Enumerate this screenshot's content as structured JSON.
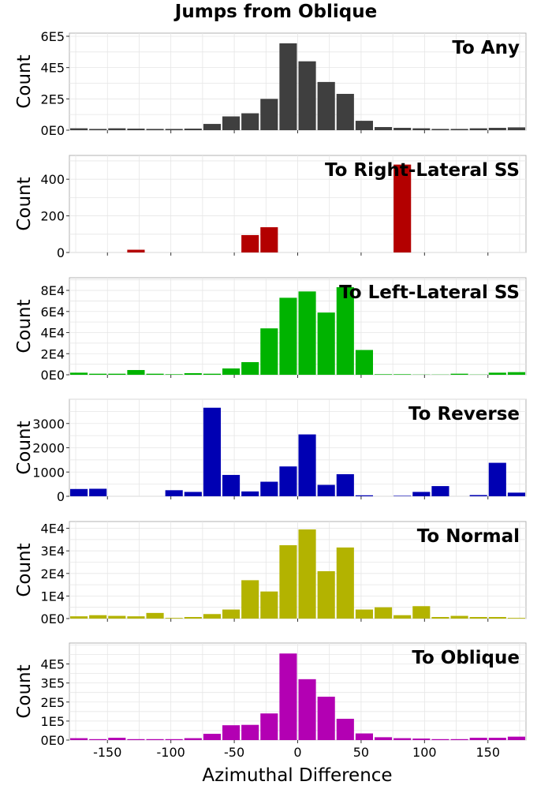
{
  "chart_data": {
    "type": "bar",
    "title": "Jumps from Oblique",
    "xlabel": "Azimuthal Difference",
    "xlim": [
      -180,
      180
    ],
    "bin_width": 15,
    "x": [
      -172.5,
      -157.5,
      -142.5,
      -127.5,
      -112.5,
      -97.5,
      -82.5,
      -67.5,
      -52.5,
      -37.5,
      -22.5,
      -7.5,
      7.5,
      22.5,
      37.5,
      52.5,
      67.5,
      82.5,
      97.5,
      112.5,
      127.5,
      142.5,
      157.5,
      172.5
    ],
    "xticks": [
      -150,
      -100,
      -50,
      0,
      50,
      100,
      150
    ],
    "xtick_labels": [
      "-150",
      "-100",
      "-50",
      "0",
      "50",
      "100",
      "150"
    ],
    "grid": true,
    "panels": [
      {
        "name": "To Any",
        "color": "#3f3f3f",
        "ylabel": "Count",
        "ylim": [
          0,
          620000
        ],
        "yticks": [
          0,
          200000,
          400000,
          600000
        ],
        "ytick_labels": [
          "0E0",
          "2E5",
          "4E5",
          "6E5"
        ],
        "values": [
          12000,
          8000,
          12000,
          10000,
          8000,
          8000,
          10000,
          40000,
          88000,
          108000,
          200000,
          555000,
          440000,
          308000,
          232000,
          60000,
          20000,
          15000,
          12000,
          8000,
          8000,
          12000,
          15000,
          18000
        ]
      },
      {
        "name": "To Right-Lateral SS",
        "color": "#b30000",
        "ylabel": "Count",
        "ylim": [
          0,
          530
        ],
        "yticks": [
          0,
          200,
          400
        ],
        "ytick_labels": [
          "0",
          "200",
          "400"
        ],
        "values": [
          0,
          0,
          0,
          15,
          0,
          0,
          0,
          0,
          0,
          95,
          138,
          0,
          0,
          0,
          0,
          0,
          0,
          480,
          0,
          0,
          0,
          0,
          0,
          0
        ]
      },
      {
        "name": "To Left-Lateral SS",
        "color": "#00b300",
        "ylabel": "Count",
        "ylim": [
          0,
          92000
        ],
        "yticks": [
          0,
          20000,
          40000,
          60000,
          80000
        ],
        "ytick_labels": [
          "0E0",
          "2E4",
          "4E4",
          "6E4",
          "8E4"
        ],
        "values": [
          2000,
          1000,
          1000,
          4500,
          1000,
          500,
          1500,
          1000,
          6000,
          12000,
          44000,
          73000,
          79000,
          59000,
          83000,
          23500,
          500,
          500,
          200,
          200,
          1000,
          200,
          2000,
          2500
        ]
      },
      {
        "name": "To Reverse",
        "color": "#0000b3",
        "ylabel": "Count",
        "ylim": [
          0,
          4000
        ],
        "yticks": [
          0,
          1000,
          2000,
          3000
        ],
        "ytick_labels": [
          "0",
          "1000",
          "2000",
          "3000"
        ],
        "values": [
          300,
          310,
          0,
          0,
          0,
          250,
          180,
          3650,
          880,
          200,
          600,
          1230,
          2550,
          470,
          910,
          40,
          0,
          20,
          180,
          420,
          0,
          50,
          1380,
          150
        ]
      },
      {
        "name": "To Normal",
        "color": "#b3b300",
        "ylabel": "Count",
        "ylim": [
          0,
          43000
        ],
        "yticks": [
          0,
          10000,
          20000,
          30000,
          40000
        ],
        "ytick_labels": [
          "0E0",
          "1E4",
          "2E4",
          "3E4",
          "4E4"
        ],
        "values": [
          1000,
          1500,
          1200,
          1000,
          2500,
          300,
          700,
          2000,
          4000,
          17000,
          12000,
          32500,
          39500,
          21000,
          31500,
          4000,
          5000,
          1500,
          5500,
          700,
          1200,
          700,
          700,
          300
        ]
      },
      {
        "name": "To Oblique",
        "color": "#b300b3",
        "ylabel": "Count",
        "ylim": [
          0,
          510000
        ],
        "yticks": [
          0,
          100000,
          200000,
          300000,
          400000
        ],
        "ytick_labels": [
          "0E0",
          "1E5",
          "2E5",
          "3E5",
          "4E5"
        ],
        "values": [
          10000,
          5000,
          12000,
          5000,
          5000,
          5000,
          10000,
          33000,
          78000,
          80000,
          140000,
          455000,
          320000,
          228000,
          112000,
          35000,
          15000,
          10000,
          8000,
          5000,
          5000,
          12000,
          12000,
          18000
        ]
      }
    ]
  }
}
